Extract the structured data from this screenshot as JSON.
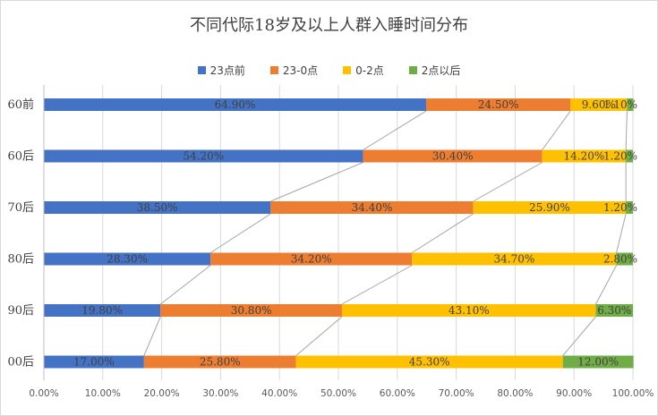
{
  "chart_data": {
    "type": "bar",
    "orientation": "horizontal",
    "stacked": true,
    "title": "不同代际18岁及以上人群入睡时间分布",
    "categories": [
      "60前",
      "60后",
      "70后",
      "80后",
      "90后",
      "00后"
    ],
    "series": [
      {
        "name": "23点前",
        "color": "#4472C4",
        "values": [
          64.9,
          54.2,
          38.5,
          28.3,
          19.8,
          17.0
        ],
        "labels": [
          "64.90%",
          "54.20%",
          "38.50%",
          "28.30%",
          "19.80%",
          "17.00%"
        ]
      },
      {
        "name": "23-0点",
        "color": "#ED7D31",
        "values": [
          24.5,
          30.4,
          34.4,
          34.2,
          30.8,
          25.8
        ],
        "labels": [
          "24.50%",
          "30.40%",
          "34.40%",
          "34.20%",
          "30.80%",
          "25.80%"
        ]
      },
      {
        "name": "0-2点",
        "color": "#FFC000",
        "values": [
          9.6,
          14.2,
          25.9,
          34.7,
          43.1,
          45.3
        ],
        "labels": [
          "9.60%",
          "14.20%",
          "25.90%",
          "34.70%",
          "43.10%",
          "45.30%"
        ]
      },
      {
        "name": "2点以后",
        "color": "#70AD47",
        "values": [
          1.1,
          1.2,
          1.2,
          2.8,
          6.3,
          12.0
        ],
        "labels": [
          "1.10%",
          "1.20%",
          "1.20%",
          "2.80%",
          "6.30%",
          "12.00%"
        ]
      }
    ],
    "xlim": [
      0,
      100
    ],
    "xticks": [
      "0.00%",
      "10.00%",
      "20.00%",
      "30.00%",
      "40.00%",
      "50.00%",
      "60.00%",
      "70.00%",
      "80.00%",
      "90.00%",
      "100.00%"
    ],
    "xlabel": "",
    "ylabel": "",
    "legend_position": "top",
    "grid": "vertical",
    "series_lines": true
  }
}
